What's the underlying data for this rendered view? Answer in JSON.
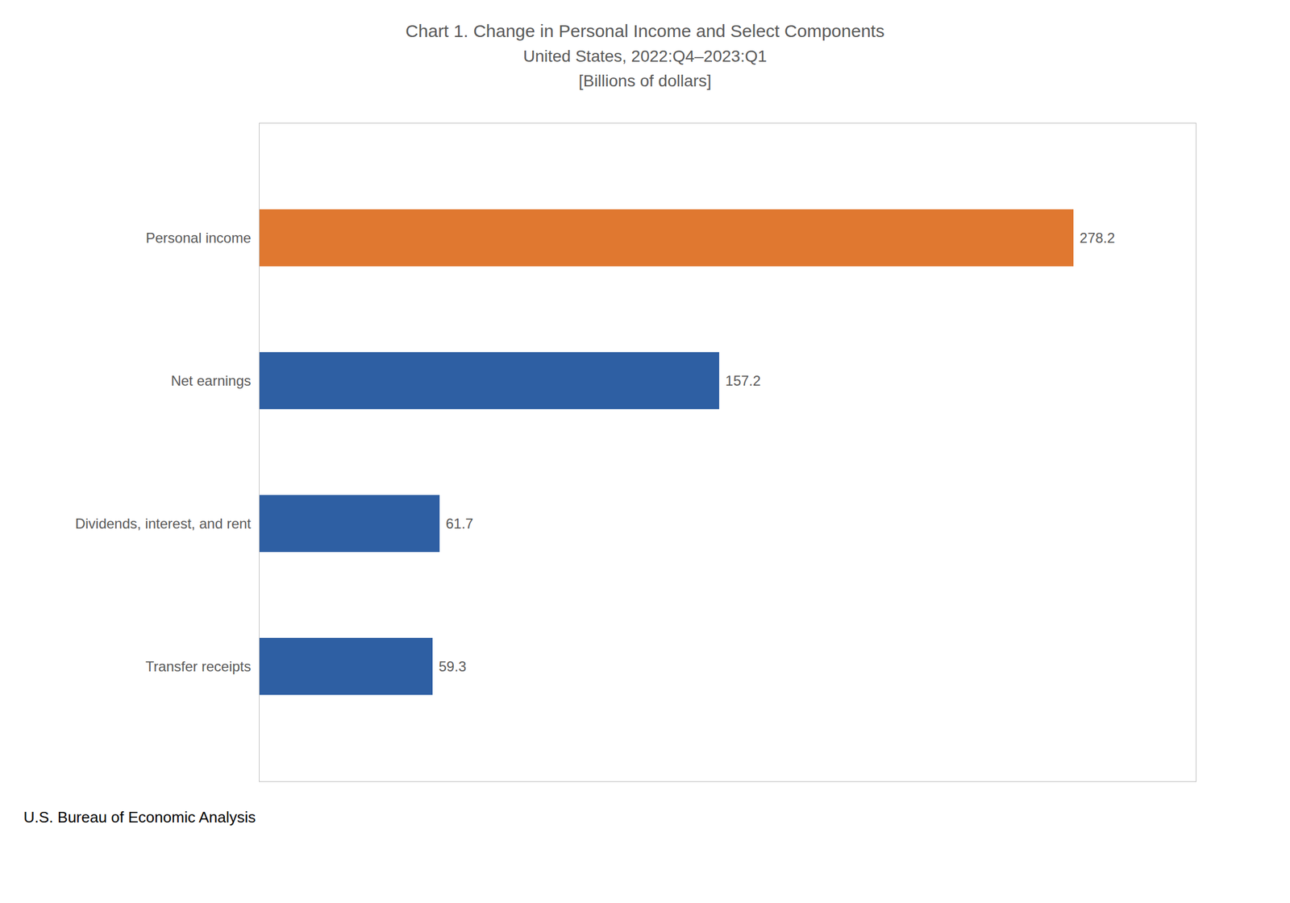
{
  "chart_data": {
    "type": "bar",
    "orientation": "horizontal",
    "title": "Chart 1. Change in Personal Income and Select Components",
    "subtitle": [
      "United States, 2022:Q4–2023:Q1",
      "[Billions of dollars]"
    ],
    "caption": "U.S. Bureau of Economic Analysis",
    "categories": [
      "Personal income",
      "Net earnings",
      "Dividends, interest, and rent",
      "Transfer receipts"
    ],
    "values": [
      278.2,
      157.2,
      61.7,
      59.3
    ],
    "colors": [
      "#E07830",
      "#2E5FA3",
      "#2E5FA3",
      "#2E5FA3"
    ],
    "xlim": [
      0,
      320
    ],
    "data_labels": true,
    "tick_labels": "y",
    "grid": false
  }
}
